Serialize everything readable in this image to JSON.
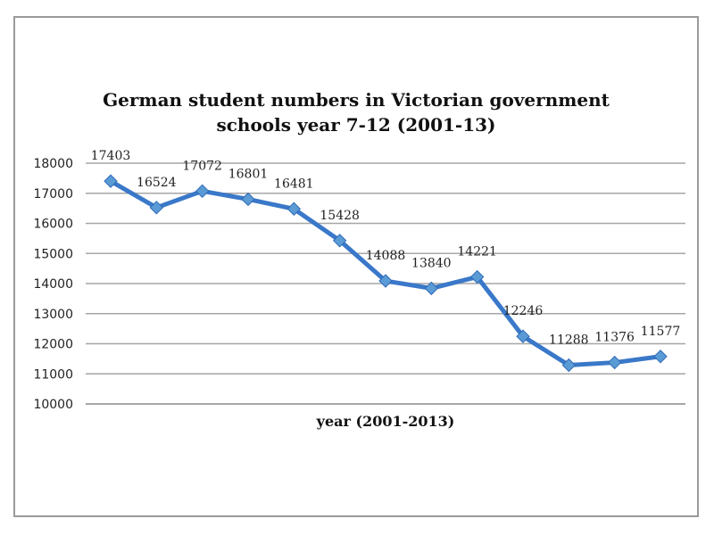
{
  "chart_data": {
    "type": "line",
    "title_lines": [
      "German student numbers in Victorian government",
      "schools year 7-12 (2001-13)"
    ],
    "xlabel": "year (2001-2013)",
    "ylabel": "",
    "ylim": [
      10000,
      18000
    ],
    "yticks": [
      10000,
      11000,
      12000,
      13000,
      14000,
      15000,
      16000,
      17000,
      18000
    ],
    "x": [
      2001,
      2002,
      2003,
      2004,
      2005,
      2006,
      2007,
      2008,
      2009,
      2010,
      2011,
      2012,
      2013
    ],
    "xtick_labels_visible": false,
    "series": [
      {
        "values": [
          17403,
          16524,
          17072,
          16801,
          16481,
          15428,
          14088,
          13840,
          14221,
          12246,
          11288,
          11376,
          11577
        ],
        "color": "#3a78c9",
        "marker_color": "#5b9bd5",
        "marker": "diamond",
        "data_labels": true
      }
    ],
    "grid": true,
    "legend": "none",
    "gridline_color": "#a6a6a6"
  }
}
